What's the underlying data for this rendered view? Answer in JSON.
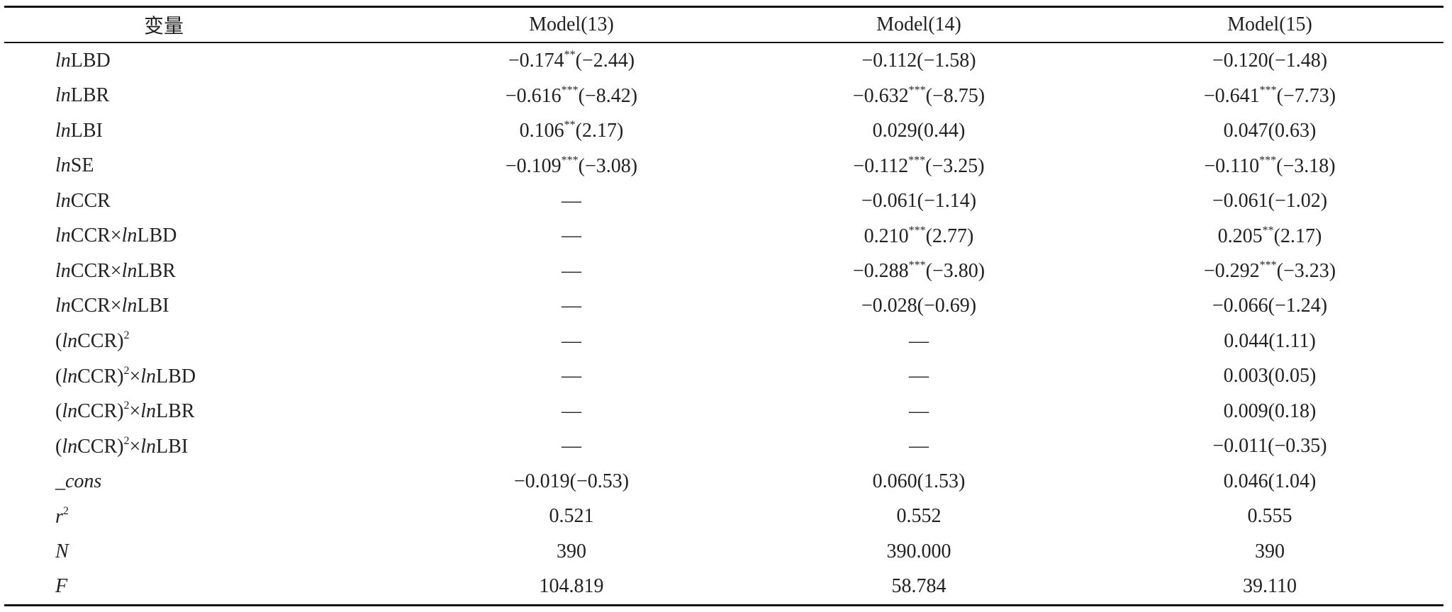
{
  "table": {
    "header": [
      "变量",
      "Model(13)",
      "Model(14)",
      "Model(15)"
    ],
    "rows": [
      [
        [
          {
            "text": "ln",
            "style": "italic"
          },
          "LBD"
        ],
        [
          "−0.174",
          {
            "text": "**",
            "style": "sup"
          },
          "(−2.44)"
        ],
        "−0.112(−1.58)",
        "−0.120(−1.48)"
      ],
      [
        [
          {
            "text": "ln",
            "style": "italic"
          },
          "LBR"
        ],
        [
          "−0.616",
          {
            "text": "***",
            "style": "sup"
          },
          "(−8.42)"
        ],
        [
          "−0.632",
          {
            "text": "***",
            "style": "sup"
          },
          "(−8.75)"
        ],
        [
          "−0.641",
          {
            "text": "***",
            "style": "sup"
          },
          "(−7.73)"
        ]
      ],
      [
        [
          {
            "text": "ln",
            "style": "italic"
          },
          "LBI"
        ],
        [
          "0.106",
          {
            "text": "**",
            "style": "sup"
          },
          "(2.17)"
        ],
        "0.029(0.44)",
        "0.047(0.63)"
      ],
      [
        [
          {
            "text": "ln",
            "style": "italic"
          },
          "SE"
        ],
        [
          "−0.109",
          {
            "text": "***",
            "style": "sup"
          },
          "(−3.08)"
        ],
        [
          "−0.112",
          {
            "text": "***",
            "style": "sup"
          },
          "(−3.25)"
        ],
        [
          "−0.110",
          {
            "text": "***",
            "style": "sup"
          },
          "(−3.18)"
        ]
      ],
      [
        [
          {
            "text": "ln",
            "style": "italic"
          },
          "CCR"
        ],
        "—",
        "−0.061(−1.14)",
        "−0.061(−1.02)"
      ],
      [
        [
          {
            "text": "ln",
            "style": "italic"
          },
          "CCR×",
          {
            "text": "ln",
            "style": "italic"
          },
          "LBD"
        ],
        "—",
        [
          "0.210",
          {
            "text": "***",
            "style": "sup"
          },
          "(2.77)"
        ],
        [
          "0.205",
          {
            "text": "**",
            "style": "sup"
          },
          "(2.17)"
        ]
      ],
      [
        [
          {
            "text": "ln",
            "style": "italic"
          },
          "CCR×",
          {
            "text": "ln",
            "style": "italic"
          },
          "LBR"
        ],
        "—",
        [
          "−0.288",
          {
            "text": "***",
            "style": "sup"
          },
          "(−3.80)"
        ],
        [
          "−0.292",
          {
            "text": "***",
            "style": "sup"
          },
          "(−3.23)"
        ]
      ],
      [
        [
          {
            "text": "ln",
            "style": "italic"
          },
          "CCR×",
          {
            "text": "ln",
            "style": "italic"
          },
          "LBI"
        ],
        "—",
        "−0.028(−0.69)",
        "−0.066(−1.24)"
      ],
      [
        [
          "(",
          {
            "text": "ln",
            "style": "italic"
          },
          "CCR)",
          {
            "text": "2",
            "style": "sup"
          }
        ],
        "—",
        "—",
        "0.044(1.11)"
      ],
      [
        [
          "(",
          {
            "text": "ln",
            "style": "italic"
          },
          "CCR)",
          {
            "text": "2",
            "style": "sup"
          },
          "×",
          {
            "text": "ln",
            "style": "italic"
          },
          "LBD"
        ],
        "—",
        "—",
        "0.003(0.05)"
      ],
      [
        [
          "(",
          {
            "text": "ln",
            "style": "italic"
          },
          "CCR)",
          {
            "text": "2",
            "style": "sup"
          },
          "×",
          {
            "text": "ln",
            "style": "italic"
          },
          "LBR"
        ],
        "—",
        "—",
        "0.009(0.18)"
      ],
      [
        [
          "(",
          {
            "text": "ln",
            "style": "italic"
          },
          "CCR)",
          {
            "text": "2",
            "style": "sup"
          },
          "×",
          {
            "text": "ln",
            "style": "italic"
          },
          "LBI"
        ],
        "—",
        "—",
        "−0.011(−0.35)"
      ],
      [
        [
          {
            "text": "_cons",
            "style": "italic"
          }
        ],
        "−0.019(−0.53)",
        "0.060(1.53)",
        "0.046(1.04)"
      ],
      [
        [
          {
            "text": "r",
            "style": "italic"
          },
          {
            "text": "2",
            "style": "sup"
          }
        ],
        "0.521",
        "0.552",
        "0.555"
      ],
      [
        [
          {
            "text": "N",
            "style": "italic"
          }
        ],
        "390",
        "390.000",
        "390"
      ],
      [
        [
          {
            "text": "F",
            "style": "italic"
          }
        ],
        "104.819",
        "58.784",
        "39.110"
      ]
    ]
  }
}
